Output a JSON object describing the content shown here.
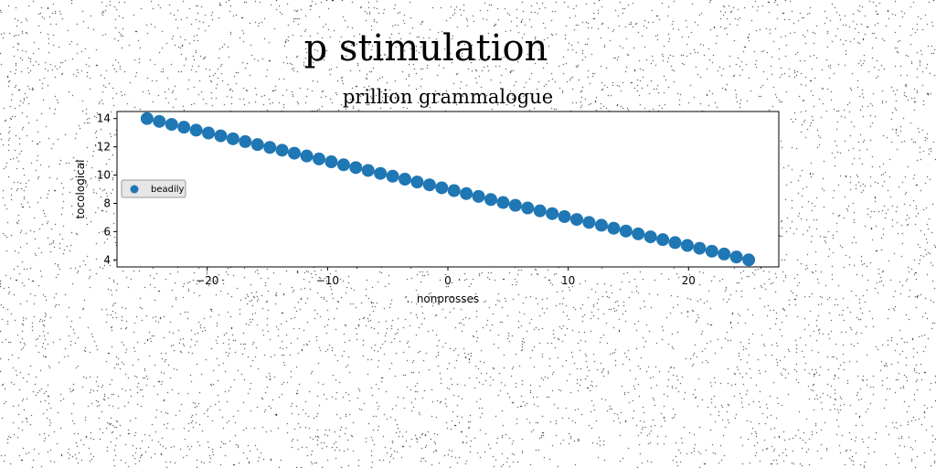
{
  "figure": {
    "suptitle": "p stimulation"
  },
  "chart_data": {
    "type": "scatter",
    "title": "prillion grammalogue",
    "xlabel": "nonprosses",
    "ylabel": "tocological",
    "xlim": [
      -27.5,
      27.5
    ],
    "ylim": [
      3.5,
      14.5
    ],
    "xticks": [
      -20,
      -10,
      0,
      10,
      20
    ],
    "yticks": [
      4,
      6,
      8,
      10,
      12,
      14
    ],
    "grid": false,
    "legend": {
      "position": "center-left",
      "entries": [
        "beadily"
      ]
    },
    "series": [
      {
        "name": "beadily",
        "color": "#1f77b4",
        "x": [
          -25,
          -23.98,
          -22.96,
          -21.94,
          -20.92,
          -19.9,
          -18.88,
          -17.86,
          -16.84,
          -15.82,
          -14.8,
          -13.78,
          -12.76,
          -11.73,
          -10.71,
          -9.69,
          -8.67,
          -7.65,
          -6.63,
          -5.61,
          -4.59,
          -3.57,
          -2.55,
          -1.53,
          -0.51,
          0.51,
          1.53,
          2.55,
          3.57,
          4.59,
          5.61,
          6.63,
          7.65,
          8.67,
          9.69,
          10.71,
          11.73,
          12.76,
          13.78,
          14.8,
          15.82,
          16.84,
          17.86,
          18.88,
          19.9,
          20.92,
          21.94,
          22.96,
          23.98,
          25
        ],
        "y": [
          14,
          13.8,
          13.59,
          13.39,
          13.18,
          12.98,
          12.78,
          12.57,
          12.37,
          12.16,
          11.96,
          11.76,
          11.55,
          11.35,
          11.14,
          10.94,
          10.73,
          10.53,
          10.33,
          10.12,
          9.92,
          9.71,
          9.51,
          9.31,
          9.1,
          8.9,
          8.69,
          8.49,
          8.27,
          8.06,
          7.86,
          7.67,
          7.47,
          7.27,
          7.06,
          6.86,
          6.65,
          6.45,
          6.24,
          6.04,
          5.84,
          5.63,
          5.43,
          5.22,
          5.02,
          4.82,
          4.61,
          4.41,
          4.2,
          4
        ]
      }
    ]
  }
}
